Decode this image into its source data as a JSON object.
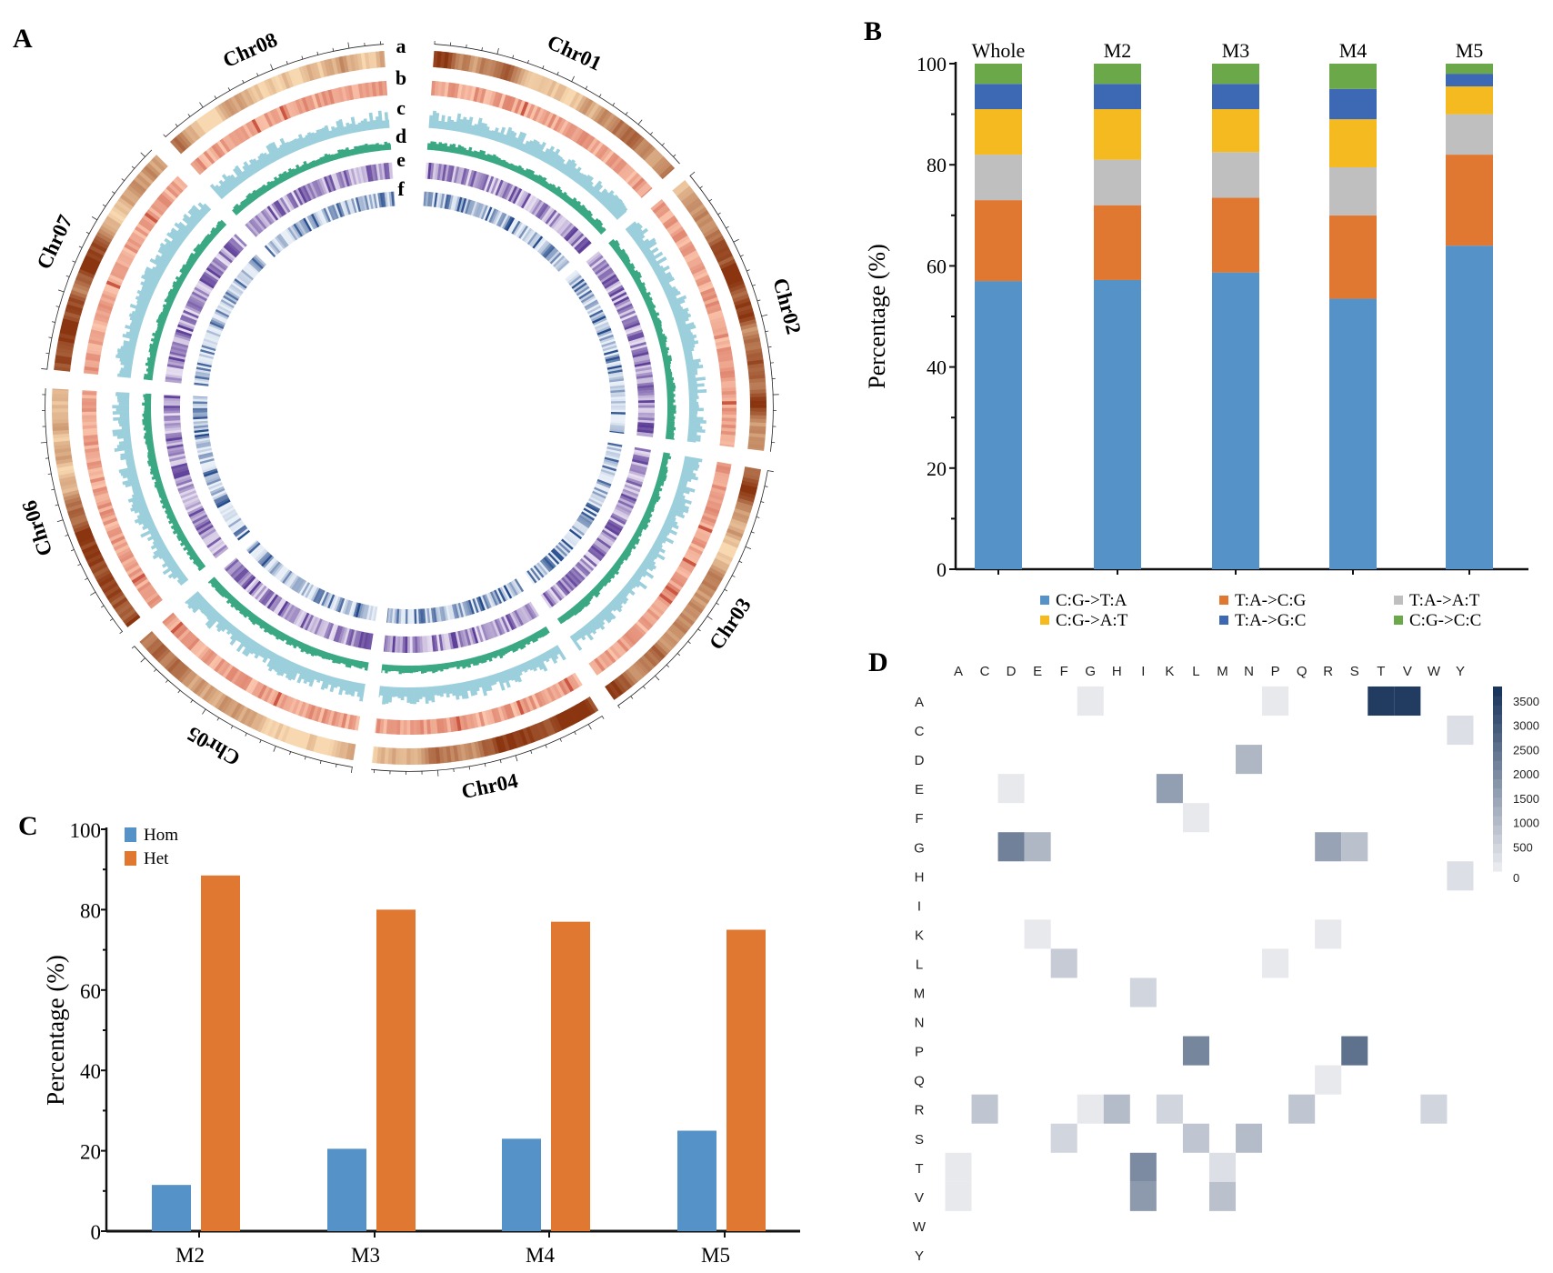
{
  "panels": {
    "a": "A",
    "b": "B",
    "c": "C",
    "d": "D"
  },
  "chart_data": [
    {
      "type": "circos",
      "chromosomes": [
        "Chr01",
        "Chr02",
        "Chr03",
        "Chr04",
        "Chr05",
        "Chr06",
        "Chr07",
        "Chr08"
      ],
      "tracks": [
        "a",
        "b",
        "c",
        "d",
        "e",
        "f"
      ],
      "track_colors": {
        "a": [
          "#f8d8b0",
          "#8a3510"
        ],
        "b": [
          "#fbc4ac",
          "#c8503c"
        ],
        "c": [
          "#9ccfdc"
        ],
        "d": [
          "#3aa883"
        ],
        "e": [
          "#e8e0f1",
          "#5a3a96"
        ],
        "f": [
          "#e9f0f8",
          "#1f4688"
        ]
      }
    },
    {
      "type": "bar",
      "stacked": true,
      "categories": [
        "Whole",
        "M2",
        "M3",
        "M4",
        "M5"
      ],
      "ylabel": "Percentage (%)",
      "ylim": [
        0,
        100
      ],
      "yticks": [
        0,
        20,
        40,
        60,
        80,
        100
      ],
      "legend": "bottom",
      "series": [
        {
          "name": "C:G->T:A",
          "color": "#5592c8",
          "values": [
            57,
            57.2,
            58.7,
            53.5,
            64
          ]
        },
        {
          "name": "T:A->C:G",
          "color": "#e07832",
          "values": [
            16,
            14.8,
            14.8,
            16.5,
            18
          ]
        },
        {
          "name": "T:A->A:T",
          "color": "#bfbfbf",
          "values": [
            9,
            9,
            9,
            9.5,
            8
          ]
        },
        {
          "name": "C:G->A:T",
          "color": "#f4ba20",
          "values": [
            9,
            10,
            8.5,
            9.5,
            5.5
          ]
        },
        {
          "name": "T:A->G:C",
          "color": "#3d68b3",
          "values": [
            5,
            5,
            5,
            6,
            2.5
          ]
        },
        {
          "name": "C:G->C:C",
          "color": "#6aa84a",
          "values": [
            4,
            4,
            4,
            5,
            2
          ]
        }
      ]
    },
    {
      "type": "bar",
      "categories": [
        "M2",
        "M3",
        "M4",
        "M5"
      ],
      "ylabel": "Percentage (%)",
      "ylim": [
        0,
        100
      ],
      "yticks": [
        0,
        20,
        40,
        60,
        80,
        100
      ],
      "legend": "top-left",
      "series": [
        {
          "name": "Hom",
          "color": "#5592c8",
          "values": [
            11.5,
            20.5,
            23,
            25
          ]
        },
        {
          "name": "Het",
          "color": "#e07832",
          "values": [
            88.5,
            80,
            77,
            75
          ]
        }
      ]
    },
    {
      "type": "heatmap",
      "x": [
        "A",
        "C",
        "D",
        "E",
        "F",
        "G",
        "H",
        "I",
        "K",
        "L",
        "M",
        "N",
        "P",
        "Q",
        "R",
        "S",
        "T",
        "V",
        "W",
        "Y"
      ],
      "y": [
        "A",
        "C",
        "D",
        "E",
        "F",
        "G",
        "H",
        "I",
        "K",
        "L",
        "M",
        "N",
        "P",
        "Q",
        "R",
        "S",
        "T",
        "V",
        "W",
        "Y"
      ],
      "colorbar_ticks": [
        0,
        500,
        1000,
        1500,
        2000,
        2500,
        3000,
        3500
      ],
      "colorbar_max": 3800,
      "color_low": "#f3f3f5",
      "color_high": "#1b365d",
      "cells": [
        {
          "row": "A",
          "col": "G",
          "value": 200
        },
        {
          "row": "A",
          "col": "P",
          "value": 200
        },
        {
          "row": "A",
          "col": "T",
          "value": 3700
        },
        {
          "row": "A",
          "col": "V",
          "value": 3700
        },
        {
          "row": "C",
          "col": "Y",
          "value": 400
        },
        {
          "row": "D",
          "col": "N",
          "value": 1200
        },
        {
          "row": "E",
          "col": "D",
          "value": 200
        },
        {
          "row": "E",
          "col": "K",
          "value": 1700
        },
        {
          "row": "F",
          "col": "L",
          "value": 200
        },
        {
          "row": "G",
          "col": "D",
          "value": 2300
        },
        {
          "row": "G",
          "col": "E",
          "value": 1200
        },
        {
          "row": "G",
          "col": "R",
          "value": 1600
        },
        {
          "row": "G",
          "col": "S",
          "value": 1000
        },
        {
          "row": "H",
          "col": "Y",
          "value": 400
        },
        {
          "row": "K",
          "col": "E",
          "value": 200
        },
        {
          "row": "K",
          "col": "R",
          "value": 200
        },
        {
          "row": "L",
          "col": "F",
          "value": 800
        },
        {
          "row": "L",
          "col": "P",
          "value": 200
        },
        {
          "row": "M",
          "col": "I",
          "value": 600
        },
        {
          "row": "P",
          "col": "L",
          "value": 2200
        },
        {
          "row": "P",
          "col": "S",
          "value": 2600
        },
        {
          "row": "Q",
          "col": "R",
          "value": 200
        },
        {
          "row": "R",
          "col": "C",
          "value": 900
        },
        {
          "row": "R",
          "col": "G",
          "value": 200
        },
        {
          "row": "R",
          "col": "H",
          "value": 1100
        },
        {
          "row": "R",
          "col": "K",
          "value": 600
        },
        {
          "row": "R",
          "col": "Q",
          "value": 900
        },
        {
          "row": "R",
          "col": "W",
          "value": 600
        },
        {
          "row": "S",
          "col": "F",
          "value": 600
        },
        {
          "row": "S",
          "col": "L",
          "value": 900
        },
        {
          "row": "S",
          "col": "N",
          "value": 1100
        },
        {
          "row": "T",
          "col": "A",
          "value": 200
        },
        {
          "row": "T",
          "col": "I",
          "value": 2100
        },
        {
          "row": "T",
          "col": "M",
          "value": 400
        },
        {
          "row": "V",
          "col": "A",
          "value": 200
        },
        {
          "row": "V",
          "col": "I",
          "value": 1800
        },
        {
          "row": "V",
          "col": "M",
          "value": 1000
        }
      ]
    }
  ]
}
